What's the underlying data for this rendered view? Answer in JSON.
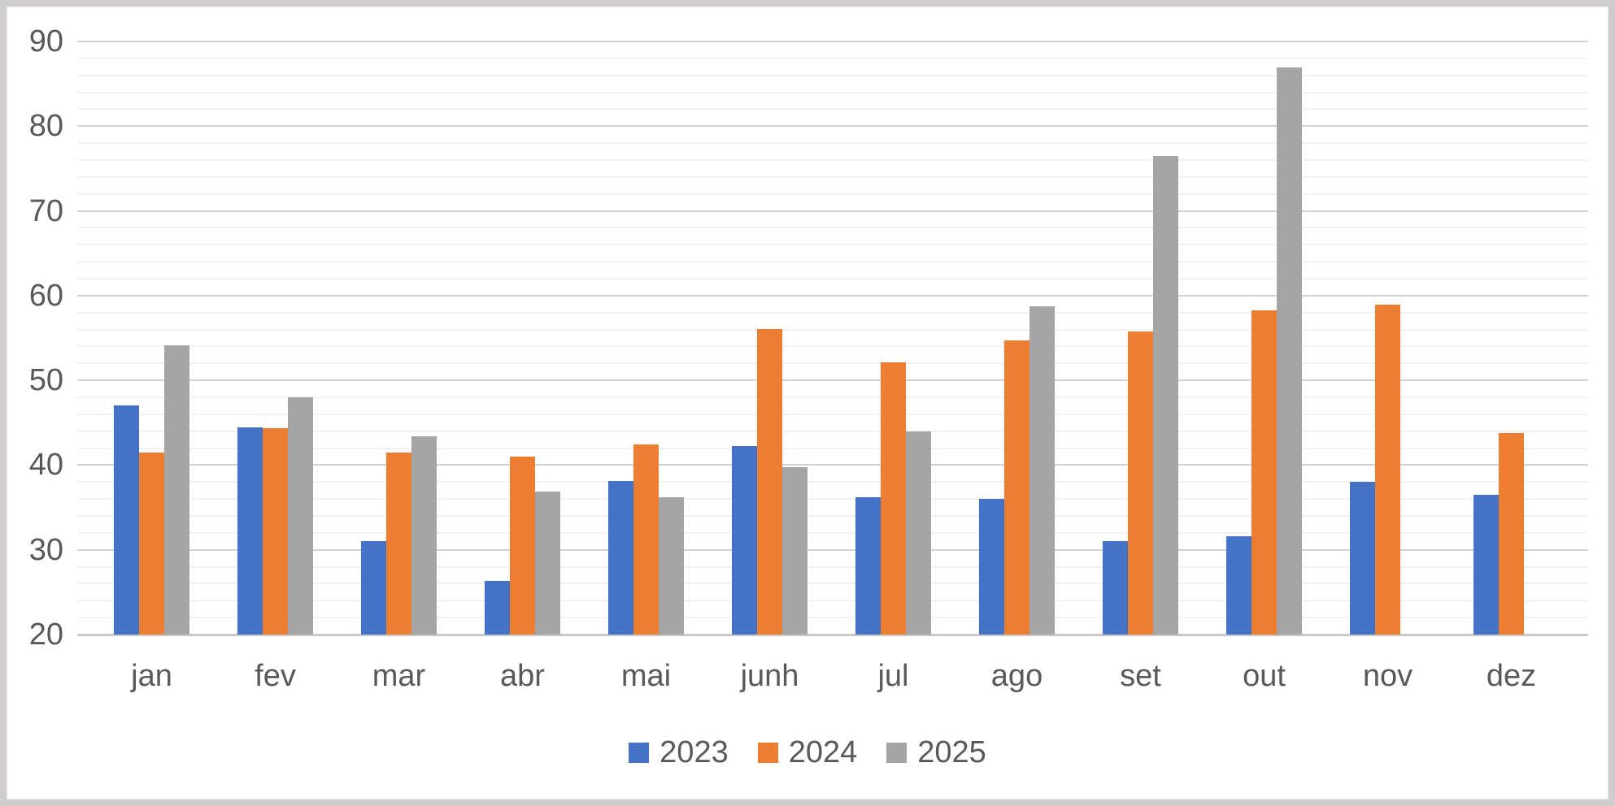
{
  "chart_data": {
    "type": "bar",
    "title": "",
    "xlabel": "",
    "ylabel": "",
    "categories": [
      "jan",
      "fev",
      "mar",
      "abr",
      "mai",
      "junh",
      "jul",
      "ago",
      "set",
      "out",
      "nov",
      "dez"
    ],
    "series": [
      {
        "name": "2023",
        "color": "#4472C4",
        "values": [
          47,
          44.5,
          31,
          26.3,
          38.1,
          42.2,
          36.2,
          36,
          31,
          31.6,
          38,
          36.5
        ]
      },
      {
        "name": "2024",
        "color": "#ED7D31",
        "values": [
          41.5,
          44.4,
          41.5,
          41,
          42.4,
          56.1,
          52.1,
          54.7,
          55.8,
          58.3,
          58.9,
          43.8
        ]
      },
      {
        "name": "2025",
        "color": "#A5A5A5",
        "values": [
          54.1,
          48,
          43.4,
          36.9,
          36.2,
          39.8,
          44,
          58.7,
          76.5,
          86.9,
          null,
          null
        ]
      }
    ],
    "ylim": [
      20,
      90
    ],
    "y_ticks": [
      20,
      30,
      40,
      50,
      60,
      70,
      80,
      90
    ],
    "minor_grid_step": 2,
    "grid": true,
    "legend_position": "bottom",
    "axis_text_color": "#595959",
    "gridline_color_major": "#d2d2d2",
    "gridline_color_minor": "#f1f1f1"
  }
}
